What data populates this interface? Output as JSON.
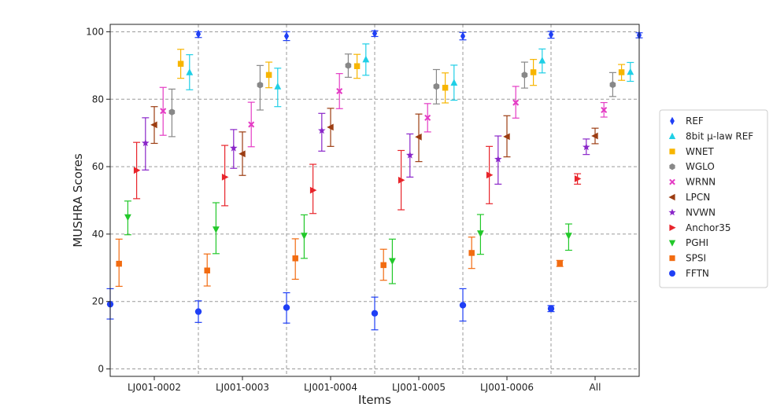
{
  "chart_data": {
    "type": "scatter",
    "title": "",
    "xlabel": "Items",
    "ylabel": "MUSHRA Scores",
    "ylim": [
      0,
      100
    ],
    "yticks": [
      0,
      20,
      40,
      60,
      80,
      100
    ],
    "grid": true,
    "legend_position": "right",
    "categories": [
      "LJ001-0002",
      "LJ001-0003",
      "LJ001-0004",
      "LJ001-0005",
      "LJ001-0006",
      "All"
    ],
    "series": [
      {
        "name": "FFTN",
        "color": "#1f3ff5",
        "marker": "circle",
        "values": [
          19.2,
          17.0,
          18.2,
          16.5,
          18.9,
          17.9
        ],
        "lower": [
          14.8,
          13.8,
          13.6,
          11.6,
          14.2,
          17.0
        ],
        "upper": [
          23.8,
          20.2,
          22.6,
          21.3,
          23.8,
          18.8
        ]
      },
      {
        "name": "SPSI",
        "color": "#f26b10",
        "marker": "square",
        "values": [
          31.2,
          29.2,
          32.8,
          30.8,
          34.4,
          31.3
        ],
        "lower": [
          24.5,
          24.6,
          26.6,
          26.3,
          29.8,
          30.4
        ],
        "upper": [
          38.5,
          34.1,
          38.6,
          35.5,
          39.1,
          32.2
        ]
      },
      {
        "name": "PGHI",
        "color": "#22c82a",
        "marker": "triangle-down",
        "values": [
          45.0,
          41.4,
          39.5,
          32.0,
          40.2,
          39.5
        ],
        "lower": [
          39.8,
          34.2,
          32.8,
          25.3,
          34.0,
          35.2
        ],
        "upper": [
          49.8,
          49.3,
          45.7,
          38.5,
          45.8,
          43.0
        ]
      },
      {
        "name": "Anchor35",
        "color": "#e8242b",
        "marker": "triangle-right",
        "values": [
          58.9,
          56.9,
          53.0,
          56.0,
          57.5,
          56.4
        ],
        "lower": [
          50.5,
          48.4,
          46.1,
          47.2,
          49.0,
          54.8
        ],
        "upper": [
          67.2,
          66.3,
          60.7,
          64.8,
          66.0,
          57.9
        ]
      },
      {
        "name": "NVWN",
        "color": "#8a26c9",
        "marker": "star",
        "values": [
          67.0,
          65.5,
          70.7,
          63.4,
          62.2,
          65.8
        ],
        "lower": [
          59.0,
          59.5,
          64.6,
          56.9,
          54.8,
          63.6
        ],
        "upper": [
          74.5,
          71.0,
          75.8,
          69.7,
          69.1,
          68.2
        ]
      },
      {
        "name": "LPCN",
        "color": "#9c3d12",
        "marker": "triangle-left",
        "values": [
          72.4,
          63.8,
          71.7,
          68.8,
          68.9,
          69.1
        ],
        "lower": [
          66.9,
          57.4,
          66.0,
          61.5,
          62.9,
          66.8
        ],
        "upper": [
          77.8,
          70.3,
          77.3,
          75.6,
          75.1,
          71.4
        ]
      },
      {
        "name": "WRNN",
        "color": "#e43bc4",
        "marker": "x",
        "values": [
          76.5,
          72.5,
          82.4,
          74.5,
          79.0,
          76.8
        ],
        "lower": [
          69.3,
          65.9,
          77.2,
          70.3,
          74.4,
          74.7
        ],
        "upper": [
          83.5,
          79.1,
          87.6,
          78.7,
          83.8,
          79.0
        ]
      },
      {
        "name": "WGLO",
        "color": "#888888",
        "marker": "hexagon",
        "values": [
          76.2,
          84.2,
          90.0,
          83.8,
          87.2,
          84.3
        ],
        "lower": [
          68.9,
          76.8,
          86.5,
          78.6,
          83.3,
          80.8
        ],
        "upper": [
          83.0,
          90.0,
          93.4,
          88.8,
          91.0,
          87.9
        ]
      },
      {
        "name": "WNET",
        "color": "#f7b500",
        "marker": "square",
        "values": [
          90.5,
          87.2,
          89.8,
          83.4,
          88.0,
          88.0
        ],
        "lower": [
          86.2,
          83.4,
          86.2,
          78.9,
          84.1,
          85.6
        ],
        "upper": [
          94.8,
          91.0,
          93.3,
          87.8,
          91.8,
          90.3
        ]
      },
      {
        "name": "8bit μ-law REF",
        "color": "#1fcfe6",
        "marker": "triangle-up",
        "values": [
          88.0,
          83.8,
          91.8,
          84.9,
          91.5,
          88.1
        ],
        "lower": [
          82.8,
          77.8,
          87.1,
          79.7,
          87.8,
          85.3
        ],
        "upper": [
          93.2,
          89.2,
          96.4,
          90.1,
          94.9,
          90.9
        ]
      },
      {
        "name": "REF",
        "color": "#1f3ff5",
        "marker": "diamond",
        "values": [
          99.3,
          98.7,
          99.5,
          98.7,
          99.2,
          99.0
        ],
        "lower": [
          98.3,
          97.4,
          98.6,
          97.6,
          98.1,
          98.2
        ],
        "upper": [
          100.0,
          100.0,
          100.3,
          99.8,
          100.1,
          99.7
        ]
      }
    ],
    "legend_order": [
      "REF",
      "8bit μ-law REF",
      "WNET",
      "WGLO",
      "WRNN",
      "LPCN",
      "NVWN",
      "Anchor35",
      "PGHI",
      "SPSI",
      "FFTN"
    ]
  }
}
